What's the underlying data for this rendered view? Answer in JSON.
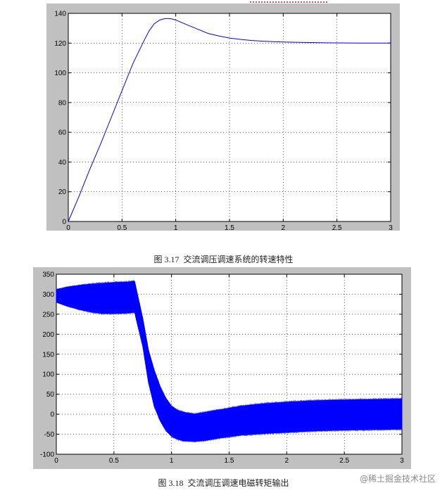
{
  "captions": {
    "chart1": "图 3.17  交流调压调速系统的转速特性",
    "chart2": "图 3.18  交流调压调速电磁转矩输出"
  },
  "watermark": "@稀土掘金技术社区",
  "colors": {
    "line": "#0000ff",
    "grid": "#000000",
    "frame": "#c0c0c0",
    "plot_bg": "#ffffff"
  },
  "chart_data": [
    {
      "type": "line",
      "title": "",
      "xlabel": "",
      "ylabel": "",
      "xlim": [
        0,
        3
      ],
      "ylim": [
        0,
        140
      ],
      "xticks": [
        "0",
        "0.5",
        "1",
        "1.5",
        "2",
        "2.5",
        "3"
      ],
      "yticks": [
        "0",
        "20",
        "40",
        "60",
        "80",
        "100",
        "120",
        "140"
      ],
      "grid": true,
      "series": [
        {
          "x": [
            0,
            0.1,
            0.2,
            0.3,
            0.4,
            0.5,
            0.6,
            0.7,
            0.75,
            0.8,
            0.85,
            0.9,
            0.95,
            1.0,
            1.1,
            1.2,
            1.3,
            1.4,
            1.5,
            1.6,
            1.7,
            1.8,
            1.9,
            2.0,
            2.2,
            2.4,
            2.6,
            2.8,
            3.0
          ],
          "values": [
            0,
            17,
            35,
            52,
            70,
            88,
            106,
            121,
            128,
            133,
            135.5,
            136.5,
            136.5,
            135.5,
            132.5,
            129.5,
            126.5,
            124.8,
            123.4,
            122.5,
            121.8,
            121.3,
            121.0,
            120.7,
            120.4,
            120.2,
            120.1,
            120.0,
            120.0
          ]
        }
      ]
    },
    {
      "type": "line",
      "title": "",
      "xlabel": "",
      "ylabel": "",
      "xlim": [
        0,
        3
      ],
      "ylim": [
        -100,
        350
      ],
      "xticks": [
        "0",
        "0.5",
        "1",
        "1.5",
        "2",
        "2.5",
        "3"
      ],
      "yticks": [
        "-100",
        "-50",
        "0",
        "50",
        "100",
        "150",
        "200",
        "250",
        "300",
        "350"
      ],
      "grid": true,
      "series": [
        {
          "name": "",
          "band_x": [
            0,
            0.1,
            0.2,
            0.3,
            0.4,
            0.5,
            0.6,
            0.68,
            0.7,
            0.75,
            0.8,
            0.85,
            0.9,
            0.95,
            1.0,
            1.05,
            1.1,
            1.2,
            1.3,
            1.4,
            1.5,
            1.6,
            1.8,
            2.0,
            2.2,
            2.4,
            2.6,
            2.8,
            3.0
          ],
          "upper": [
            312,
            318,
            322,
            325,
            327,
            329,
            330,
            332,
            305,
            240,
            160,
            110,
            70,
            40,
            20,
            10,
            5,
            0,
            5,
            10,
            15,
            20,
            26,
            30,
            33,
            35,
            36,
            37,
            38
          ],
          "lower": [
            280,
            270,
            262,
            256,
            252,
            252,
            253,
            255,
            230,
            170,
            80,
            20,
            -15,
            -40,
            -55,
            -62,
            -66,
            -68,
            -65,
            -60,
            -56,
            -52,
            -48,
            -45,
            -42,
            -40,
            -39,
            -38,
            -37
          ],
          "mean": [
            296,
            294,
            292,
            290,
            289,
            290,
            291,
            292,
            268,
            205,
            120,
            65,
            28,
            0,
            -17,
            -26,
            -30,
            -34,
            -30,
            -25,
            -20,
            -16,
            -11,
            -7,
            -4,
            -2,
            -1,
            0,
            0
          ]
        }
      ]
    }
  ]
}
